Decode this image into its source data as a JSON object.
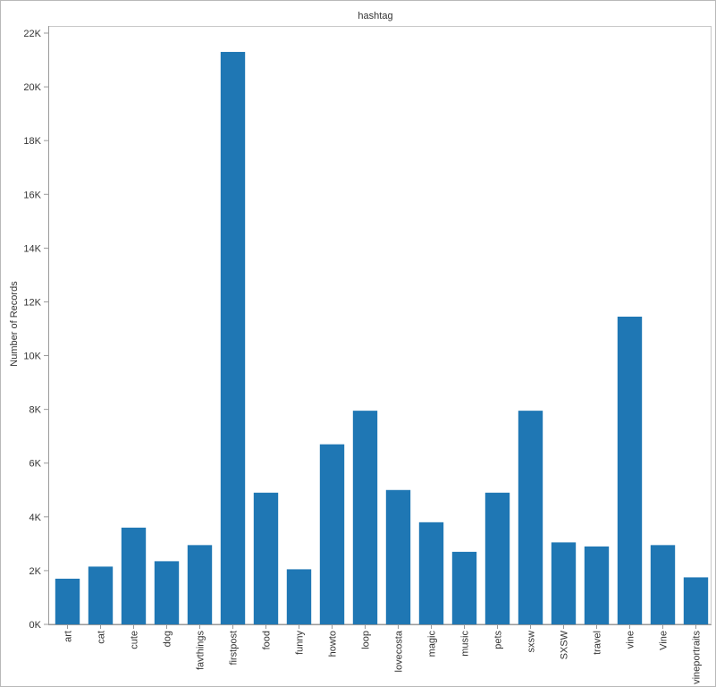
{
  "chart_data": {
    "type": "bar",
    "title": "hashtag",
    "xlabel": "",
    "ylabel": "Number of Records",
    "ylim": [
      0,
      22000
    ],
    "yticks": [
      0,
      2000,
      4000,
      6000,
      8000,
      10000,
      12000,
      14000,
      16000,
      18000,
      20000,
      22000
    ],
    "ytick_labels": [
      "0K",
      "2K",
      "4K",
      "6K",
      "8K",
      "10K",
      "12K",
      "14K",
      "16K",
      "18K",
      "20K",
      "22K"
    ],
    "grid": false,
    "legend": "none",
    "bar_color": "#1f77b4",
    "categories": [
      "art",
      "cat",
      "cute",
      "dog",
      "favthings",
      "firstpost",
      "food",
      "funny",
      "howto",
      "loop",
      "lovecosta",
      "magic",
      "music",
      "pets",
      "sxsw",
      "SXSW",
      "travel",
      "vine",
      "Vine",
      "vineportraits"
    ],
    "values": [
      1700,
      2150,
      3600,
      2350,
      2950,
      21300,
      4900,
      2050,
      6700,
      7950,
      5000,
      3800,
      2700,
      4900,
      7950,
      3050,
      2900,
      11450,
      2950,
      1750
    ]
  }
}
